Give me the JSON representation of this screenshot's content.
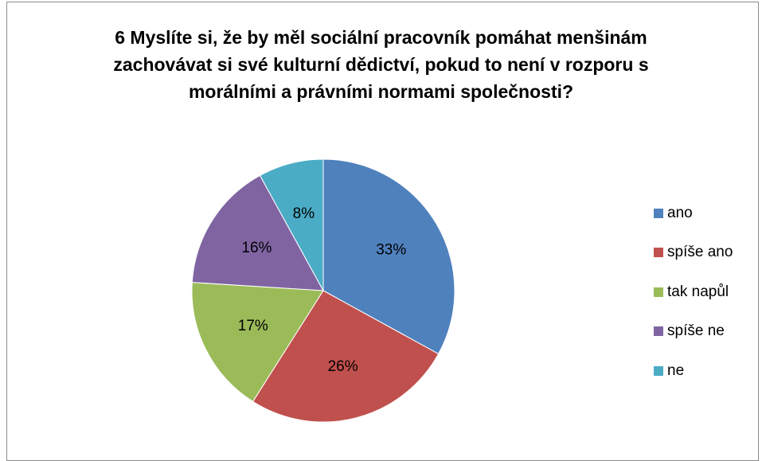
{
  "chart_data": {
    "type": "pie",
    "title_lines": [
      "6 Myslíte si, že by měl sociální pracovník pomáhat menšinám",
      "zachovávat si své kulturní dědictví, pokud to není v rozporu s",
      "morálními a právními normami společnosti?"
    ],
    "categories": [
      "ano",
      "spíše ano",
      "tak napůl",
      "spíše ne",
      "ne"
    ],
    "values": [
      33,
      26,
      17,
      16,
      8
    ],
    "labels": [
      "33%",
      "26%",
      "17%",
      "16%",
      "8%"
    ],
    "colors": [
      "#4f81bd",
      "#c0504d",
      "#9bbb59",
      "#8064a2",
      "#4bacc6"
    ],
    "legend_position": "right"
  }
}
